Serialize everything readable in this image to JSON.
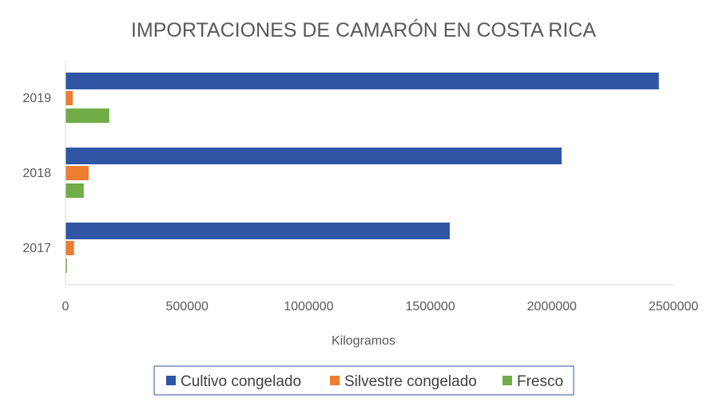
{
  "chart_data": {
    "type": "bar",
    "orientation": "horizontal",
    "title": "IMPORTACIONES DE CAMARÓN EN COSTA RICA",
    "xlabel": "Kilogramos",
    "ylabel": "",
    "categories": [
      "2019",
      "2018",
      "2017"
    ],
    "xlim": [
      0,
      2500000
    ],
    "xticks": [
      0,
      500000,
      1000000,
      1500000,
      2000000,
      2500000
    ],
    "xtick_labels": [
      "0",
      "500000",
      "1000000",
      "1500000",
      "2000000",
      "2500000"
    ],
    "grid": false,
    "legend_position": "bottom",
    "series": [
      {
        "name": "Cultivo congelado",
        "color": "#2F55A4",
        "values": [
          2440000,
          2040000,
          1580000
        ]
      },
      {
        "name": "Silvestre congelado",
        "color": "#ED7D31",
        "values": [
          30000,
          95000,
          35000
        ]
      },
      {
        "name": "Fresco",
        "color": "#70AD47",
        "values": [
          180000,
          75000,
          6000
        ]
      }
    ]
  }
}
